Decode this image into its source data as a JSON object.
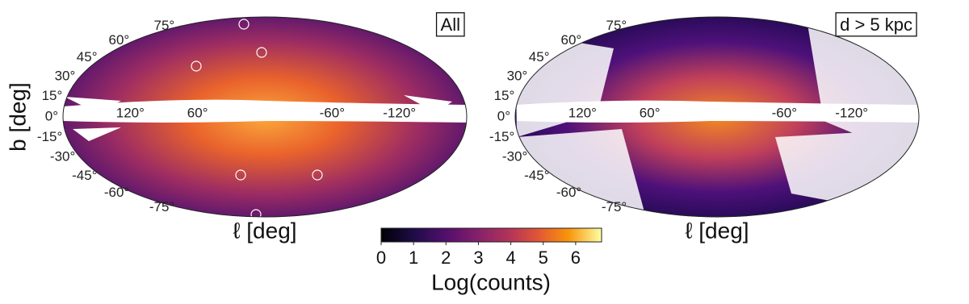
{
  "panels": [
    {
      "label": "All",
      "xlabel": "ℓ [deg]",
      "ylabel": "b [deg]",
      "lat_ticks": [
        {
          "value": 75,
          "label": "75°"
        },
        {
          "value": 60,
          "label": "60°"
        },
        {
          "value": 45,
          "label": "45°"
        },
        {
          "value": 30,
          "label": "30°"
        },
        {
          "value": 15,
          "label": "15°"
        },
        {
          "value": 0,
          "label": "0°"
        },
        {
          "value": -15,
          "label": "-15°"
        },
        {
          "value": -30,
          "label": "-30°"
        },
        {
          "value": -45,
          "label": "-45°"
        },
        {
          "value": -60,
          "label": "-60°"
        },
        {
          "value": -75,
          "label": "-75°"
        }
      ],
      "lon_ticks": [
        {
          "value": 120,
          "label": "120°"
        },
        {
          "value": 60,
          "label": "60°"
        },
        {
          "value": -60,
          "label": "-60°"
        },
        {
          "value": -120,
          "label": "-120°"
        }
      ]
    },
    {
      "label": "d > 5 kpc",
      "xlabel": "ℓ [deg]",
      "lat_ticks": [
        {
          "value": 75,
          "label": "75°"
        },
        {
          "value": 60,
          "label": "60°"
        },
        {
          "value": 45,
          "label": "45°"
        },
        {
          "value": 30,
          "label": "30°"
        },
        {
          "value": 15,
          "label": "15°"
        },
        {
          "value": 0,
          "label": "0°"
        },
        {
          "value": -15,
          "label": "-15°"
        },
        {
          "value": -30,
          "label": "-30°"
        },
        {
          "value": -45,
          "label": "-45°"
        },
        {
          "value": -60,
          "label": "-60°"
        },
        {
          "value": -75,
          "label": "-75°"
        }
      ],
      "lon_ticks": [
        {
          "value": 120,
          "label": "120°"
        },
        {
          "value": 60,
          "label": "60°"
        },
        {
          "value": -60,
          "label": "-60°"
        },
        {
          "value": -120,
          "label": "-120°"
        }
      ]
    }
  ],
  "colorbar": {
    "label": "Log(counts)",
    "lim": [
      0,
      6.8
    ],
    "ticks": [
      0,
      1,
      2,
      3,
      4,
      5,
      6
    ]
  }
}
